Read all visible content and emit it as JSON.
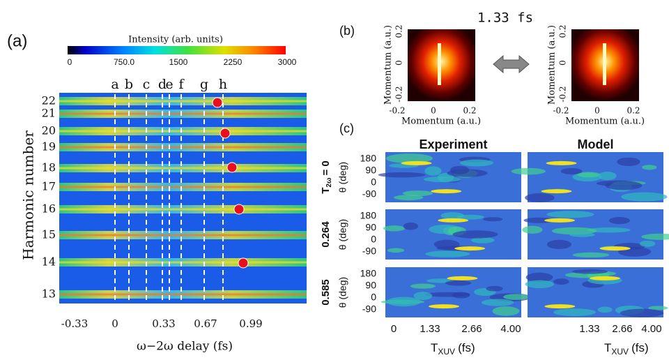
{
  "panel_a": {
    "label": "(a)",
    "colorbar": {
      "title": "Intensity (arb. units)",
      "ticks": [
        "0",
        "750.0",
        "1500",
        "2250",
        "3000"
      ]
    },
    "delay_markers": [
      "a",
      "b",
      "c",
      "d",
      "e",
      "f",
      "g",
      "h"
    ],
    "y_ticks": [
      "22",
      "21",
      "20",
      "19",
      "18",
      "17",
      "16",
      "15",
      "14",
      "13"
    ],
    "y_label": "Harmonic number",
    "x_ticks": [
      "-0.33",
      "0",
      "0.33",
      "0.67",
      "0.99"
    ],
    "x_label": "ω−2ω delay (fs)"
  },
  "panel_b": {
    "label": "(b)",
    "delay": "1.33 fs",
    "ticks": [
      "-0.2",
      "0",
      "0.2"
    ],
    "axis_label": "Momentum (a.u.)"
  },
  "panel_c": {
    "label": "(c)",
    "columns": [
      "Experiment",
      "Model"
    ],
    "row_variable": {
      "symbol": "T",
      "subscript": "2ω"
    },
    "row_labels": [
      "= 0",
      "0.264",
      "0.585"
    ],
    "y_label": "θ (deg)",
    "y_ticks": [
      "180",
      "90",
      "0",
      "-90"
    ],
    "x_ticks": [
      "0",
      "1.33",
      "2.66",
      "4.00"
    ],
    "x_label": {
      "symbol": "T",
      "subscript": "XUV",
      "unit": "(fs)"
    }
  }
}
